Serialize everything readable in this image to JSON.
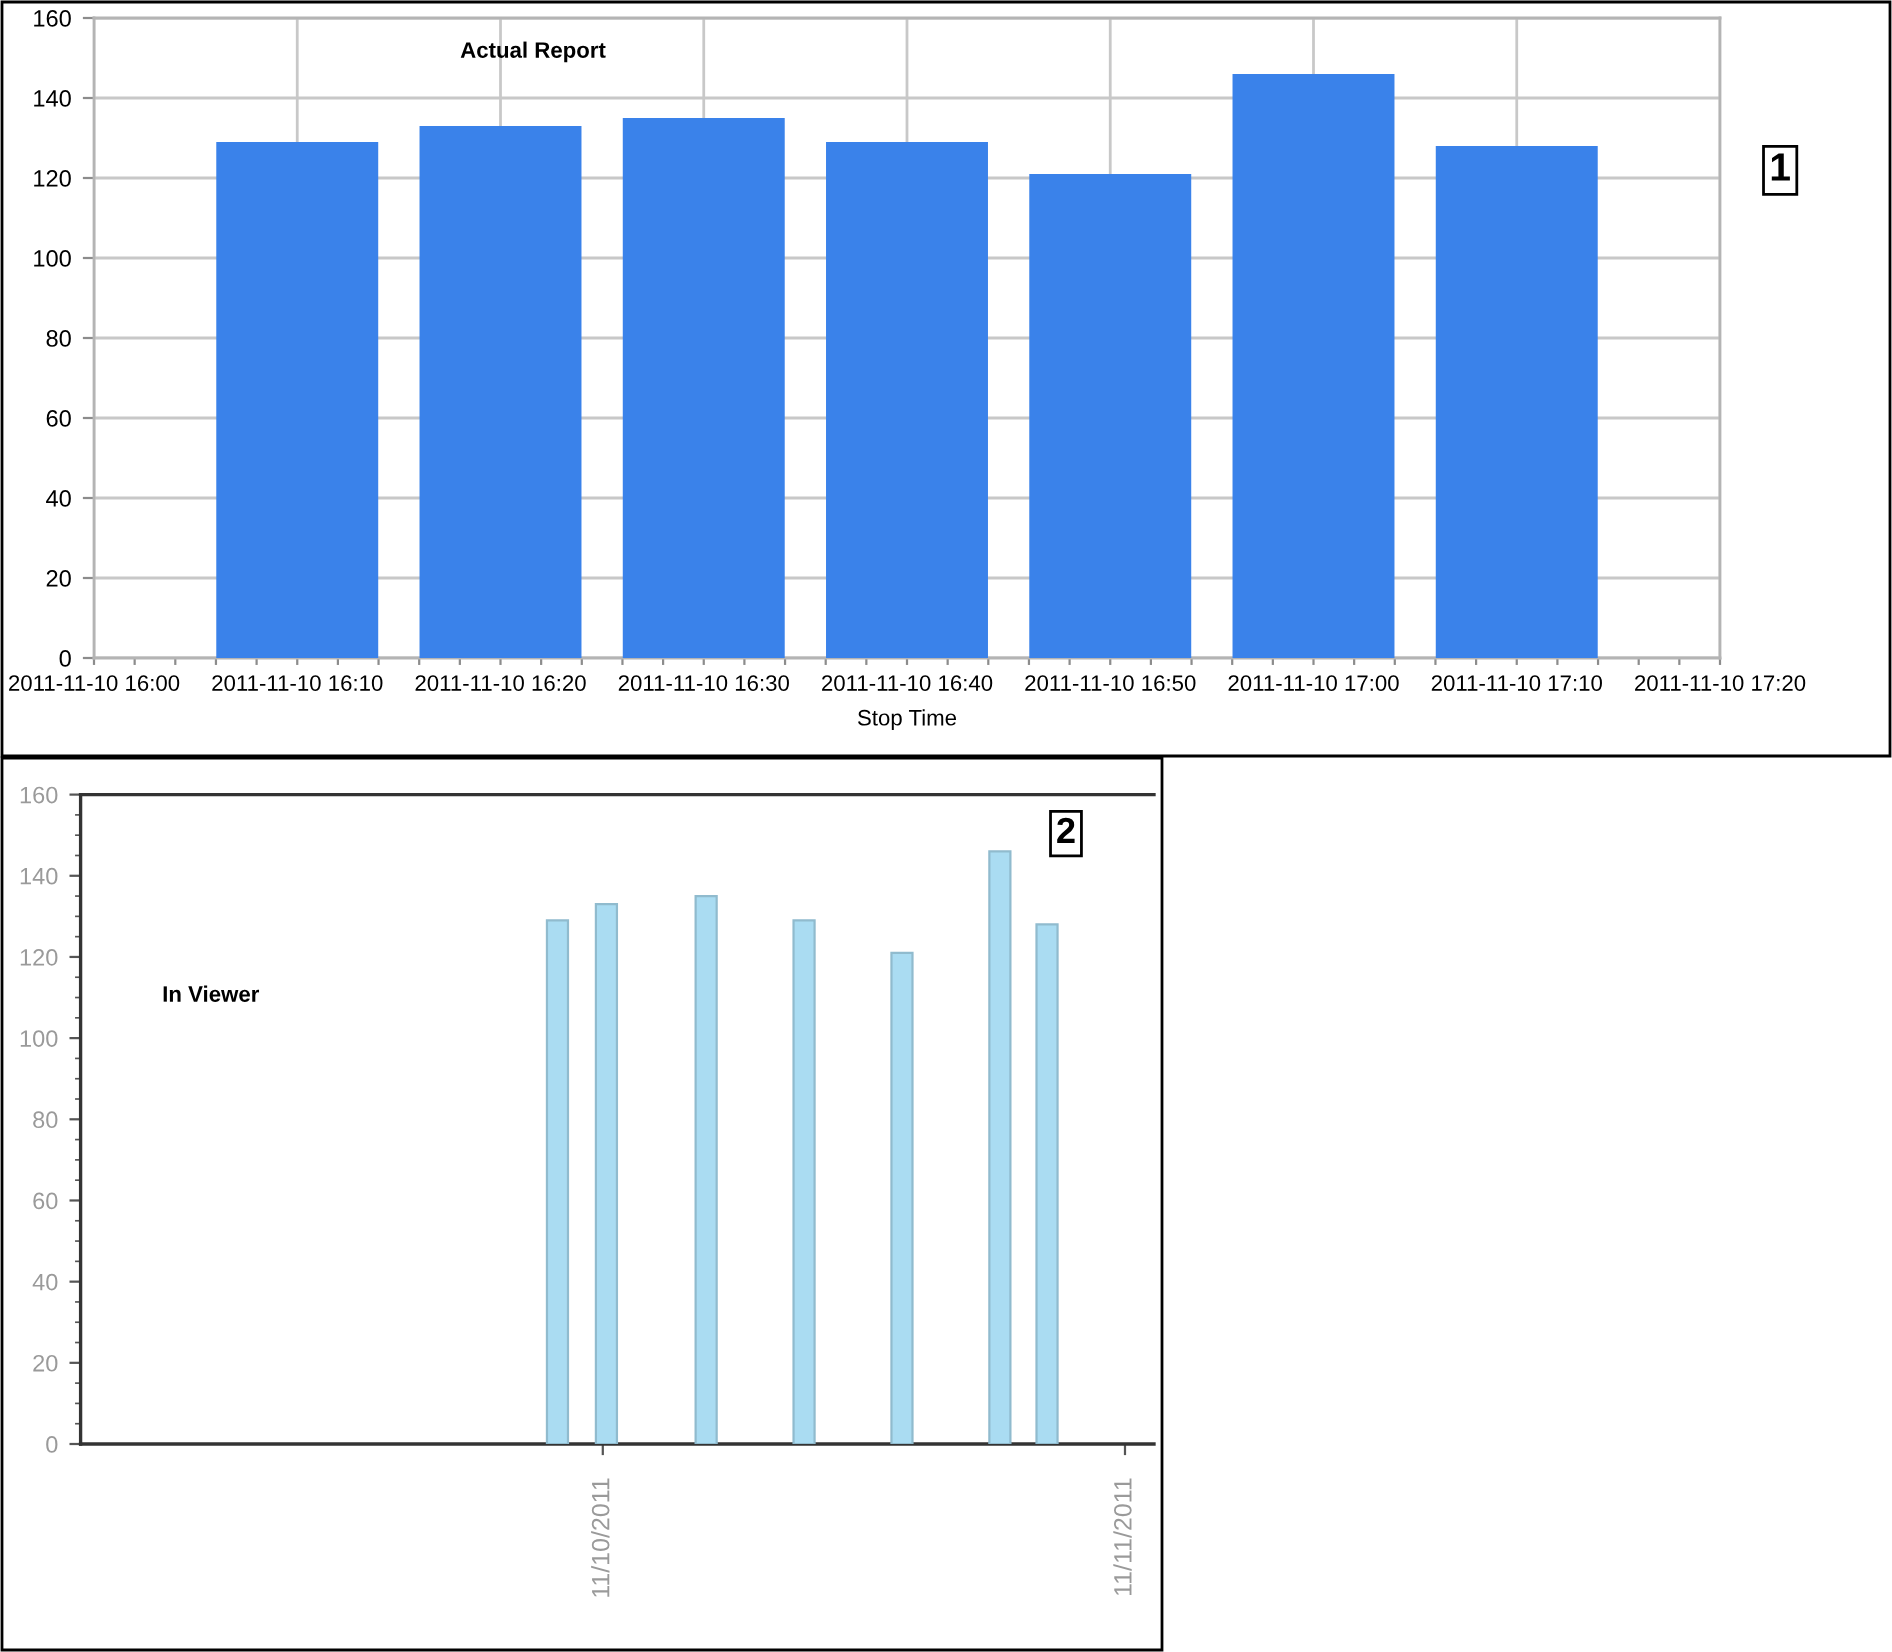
{
  "chart_data": [
    {
      "type": "bar",
      "title": "Actual Report",
      "xlabel": "Stop Time",
      "x": [
        "2011-11-10T16:10",
        "2011-11-10T16:20",
        "2011-11-10T16:30",
        "2011-11-10T16:40",
        "2011-11-10T16:50",
        "2011-11-10T17:00",
        "2011-11-10T17:10"
      ],
      "values": [
        129,
        133,
        135,
        129,
        121,
        146,
        128
      ],
      "color": "#3a82ea",
      "xlim": [
        "2011-11-10T16:00",
        "2011-11-10T17:20"
      ],
      "xticks": [
        {
          "value": "2011-11-10T16:00",
          "label": "2011-11-10 16:00"
        },
        {
          "value": "2011-11-10T16:02",
          "label": null
        },
        {
          "value": "2011-11-10T16:04",
          "label": null
        },
        {
          "value": "2011-11-10T16:06",
          "label": null
        },
        {
          "value": "2011-11-10T16:08",
          "label": null
        },
        {
          "value": "2011-11-10T16:10",
          "label": "2011-11-10 16:10"
        },
        {
          "value": "2011-11-10T16:12",
          "label": null
        },
        {
          "value": "2011-11-10T16:14",
          "label": null
        },
        {
          "value": "2011-11-10T16:16",
          "label": null
        },
        {
          "value": "2011-11-10T16:18",
          "label": null
        },
        {
          "value": "2011-11-10T16:20",
          "label": "2011-11-10 16:20"
        },
        {
          "value": "2011-11-10T16:22",
          "label": null
        },
        {
          "value": "2011-11-10T16:24",
          "label": null
        },
        {
          "value": "2011-11-10T16:26",
          "label": null
        },
        {
          "value": "2011-11-10T16:28",
          "label": null
        },
        {
          "value": "2011-11-10T16:30",
          "label": "2011-11-10 16:30"
        },
        {
          "value": "2011-11-10T16:32",
          "label": null
        },
        {
          "value": "2011-11-10T16:34",
          "label": null
        },
        {
          "value": "2011-11-10T16:36",
          "label": null
        },
        {
          "value": "2011-11-10T16:38",
          "label": null
        },
        {
          "value": "2011-11-10T16:40",
          "label": "2011-11-10 16:40"
        },
        {
          "value": "2011-11-10T16:42",
          "label": null
        },
        {
          "value": "2011-11-10T16:44",
          "label": null
        },
        {
          "value": "2011-11-10T16:46",
          "label": null
        },
        {
          "value": "2011-11-10T16:48",
          "label": null
        },
        {
          "value": "2011-11-10T16:50",
          "label": "2011-11-10 16:50"
        },
        {
          "value": "2011-11-10T16:52",
          "label": null
        },
        {
          "value": "2011-11-10T16:54",
          "label": null
        },
        {
          "value": "2011-11-10T16:56",
          "label": null
        },
        {
          "value": "2011-11-10T16:58",
          "label": null
        },
        {
          "value": "2011-11-10T17:00",
          "label": "2011-11-10 17:00"
        },
        {
          "value": "2011-11-10T17:02",
          "label": null
        },
        {
          "value": "2011-11-10T17:04",
          "label": null
        },
        {
          "value": "2011-11-10T17:06",
          "label": null
        },
        {
          "value": "2011-11-10T17:08",
          "label": null
        },
        {
          "value": "2011-11-10T17:10",
          "label": "2011-11-10 17:10"
        },
        {
          "value": "2011-11-10T17:12",
          "label": null
        },
        {
          "value": "2011-11-10T17:14",
          "label": null
        },
        {
          "value": "2011-11-10T17:16",
          "label": null
        },
        {
          "value": "2011-11-10T17:18",
          "label": null
        },
        {
          "value": "2011-11-10T17:20",
          "label": "2011-11-10 17:20"
        }
      ],
      "ylim": [
        0,
        160
      ],
      "yticks": [
        0,
        20,
        40,
        60,
        80,
        100,
        120,
        140,
        160
      ],
      "grid": true,
      "annotations": [
        "1"
      ]
    },
    {
      "type": "bar",
      "title": "In Viewer",
      "x": [
        "2011-11-09T21:55",
        "2011-11-10T00:10",
        "2011-11-10T04:45",
        "2011-11-10T09:15",
        "2011-11-10T13:45",
        "2011-11-10T18:15",
        "2011-11-10T20:25"
      ],
      "values": [
        129,
        133,
        135,
        129,
        121,
        146,
        128
      ],
      "color": "#aadcf2",
      "xlim": [
        "2011-11-09T00:00",
        "2011-11-11T01:20"
      ],
      "xticks": [
        {
          "value": "2011-11-10",
          "label": "11/10/2011"
        },
        {
          "value": "2011-11-11",
          "label": "11/11/2011"
        }
      ],
      "ylim": [
        0,
        160
      ],
      "yticks": [
        0,
        {
          "value": 5,
          "label": null
        },
        {
          "value": 10,
          "label": null
        },
        {
          "value": 15,
          "label": null
        },
        20,
        {
          "value": 25,
          "label": null
        },
        {
          "value": 30,
          "label": null
        },
        {
          "value": 35,
          "label": null
        },
        40,
        {
          "value": 45,
          "label": null
        },
        {
          "value": 50,
          "label": null
        },
        {
          "value": 55,
          "label": null
        },
        60,
        {
          "value": 65,
          "label": null
        },
        {
          "value": 70,
          "label": null
        },
        {
          "value": 75,
          "label": null
        },
        80,
        {
          "value": 85,
          "label": null
        },
        {
          "value": 90,
          "label": null
        },
        {
          "value": 95,
          "label": null
        },
        100,
        {
          "value": 105,
          "label": null
        },
        {
          "value": 110,
          "label": null
        },
        {
          "value": 115,
          "label": null
        },
        120,
        {
          "value": 125,
          "label": null
        },
        {
          "value": 130,
          "label": null
        },
        {
          "value": 135,
          "label": null
        },
        140,
        {
          "value": 145,
          "label": null
        },
        {
          "value": 150,
          "label": null
        },
        {
          "value": 155,
          "label": null
        },
        160
      ],
      "annotations": [
        "2"
      ]
    }
  ]
}
